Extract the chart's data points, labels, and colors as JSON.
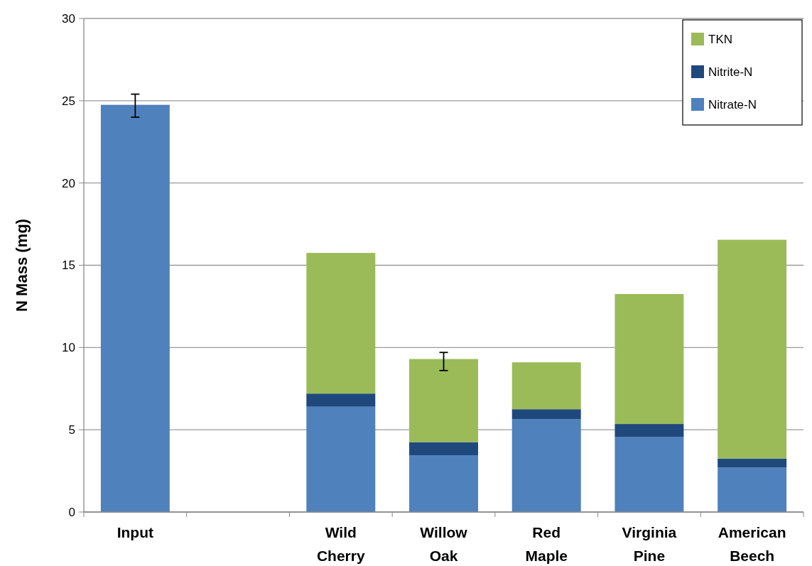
{
  "chart_data": {
    "type": "bar",
    "ylabel": "N Mass (mg)",
    "categories": [
      "Input",
      null,
      "Wild Cherry",
      "Willow Oak",
      "Red Maple",
      "Virginia Pine",
      "American Beech"
    ],
    "stacked": true,
    "ylim": [
      0,
      30
    ],
    "yticks": [
      0,
      5,
      10,
      15,
      20,
      25,
      30
    ],
    "grid": "y",
    "legend": "top right",
    "series": [
      {
        "name": "Nitrate-N",
        "color": "#4f81bd",
        "values": [
          24.75,
          null,
          6.4,
          3.45,
          5.65,
          4.55,
          2.7
        ],
        "errors": [
          [
            24.0,
            25.4
          ],
          null,
          null,
          null,
          null,
          null,
          null
        ]
      },
      {
        "name": "Nitrite-N",
        "color": "#1f497d",
        "values": [
          null,
          null,
          0.8,
          0.8,
          0.6,
          0.8,
          0.55
        ]
      },
      {
        "name": "TKN",
        "color": "#9bbb59",
        "values": [
          null,
          null,
          8.55,
          5.05,
          2.85,
          7.9,
          13.3
        ],
        "errors": [
          null,
          null,
          null,
          [
            8.6,
            9.7
          ],
          null,
          null,
          null
        ]
      }
    ]
  }
}
